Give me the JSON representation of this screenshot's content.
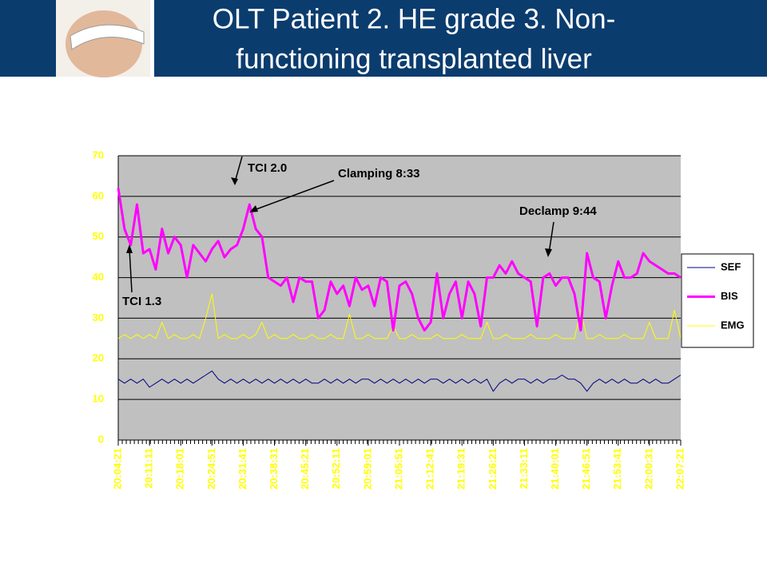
{
  "chart_data": {
    "type": "line",
    "title": [
      "OLT Patient 2. HE  grade 3. Non-",
      "functioning transplanted liver"
    ],
    "annotations": [
      "TCI 2.0",
      "Clamping 8:33",
      "Declamp 9:44",
      "TCI 1.3"
    ],
    "categories": [
      "20:04:21",
      null,
      null,
      null,
      null,
      "20:11:11",
      null,
      null,
      null,
      null,
      "20:18:01",
      null,
      null,
      null,
      null,
      "20:24:51",
      null,
      null,
      null,
      null,
      "20:31:41",
      null,
      null,
      null,
      null,
      "20:38:31",
      null,
      null,
      null,
      null,
      "20:45:21",
      null,
      null,
      null,
      null,
      "20:52:11",
      null,
      null,
      null,
      null,
      "20:59:01",
      null,
      null,
      null,
      null,
      "21:05:51",
      null,
      null,
      null,
      null,
      "21:12:41",
      null,
      null,
      null,
      null,
      "21:19:31",
      null,
      null,
      null,
      null,
      "21:26:21",
      null,
      null,
      null,
      null,
      "21:33:11",
      null,
      null,
      null,
      null,
      "21:40:01",
      null,
      null,
      null,
      null,
      "21:46:51",
      null,
      null,
      null,
      null,
      "21:53:41",
      null,
      null,
      null,
      null,
      "22:00:31",
      null,
      null,
      null,
      null,
      "22:07:21"
    ],
    "series": [
      {
        "name": "SEF",
        "color": "#000080",
        "width": 1,
        "values": [
          15,
          14,
          15,
          14,
          15,
          13,
          14,
          15,
          14,
          15,
          14,
          15,
          14,
          15,
          16,
          17,
          15,
          14,
          15,
          14,
          15,
          14,
          15,
          14,
          15,
          14,
          15,
          14,
          15,
          14,
          15,
          14,
          14,
          15,
          14,
          15,
          14,
          15,
          14,
          15,
          15,
          14,
          15,
          14,
          15,
          14,
          15,
          14,
          15,
          14,
          15,
          15,
          14,
          15,
          14,
          15,
          14,
          15,
          14,
          15,
          12,
          14,
          15,
          14,
          15,
          15,
          14,
          15,
          14,
          15,
          15,
          16,
          15,
          15,
          14,
          12,
          14,
          15,
          14,
          15,
          14,
          15,
          14,
          14,
          15,
          14,
          15,
          14,
          14,
          15,
          16
        ]
      },
      {
        "name": "BIS",
        "color": "#ff00ff",
        "width": 3,
        "values": [
          62,
          52,
          48,
          58,
          46,
          47,
          42,
          52,
          46,
          50,
          48,
          40,
          48,
          46,
          44,
          47,
          49,
          45,
          47,
          48,
          52,
          58,
          52,
          50,
          40,
          39,
          38,
          40,
          34,
          40,
          39,
          39,
          30,
          32,
          39,
          36,
          38,
          33,
          40,
          37,
          38,
          33,
          40,
          39,
          27,
          38,
          39,
          36,
          30,
          27,
          29,
          41,
          30,
          36,
          39,
          30,
          39,
          36,
          28,
          40,
          40,
          43,
          41,
          44,
          41,
          40,
          39,
          28,
          40,
          41,
          38,
          40,
          40,
          36,
          27,
          46,
          40,
          39,
          30,
          38,
          44,
          40,
          40,
          41,
          46,
          44,
          43,
          42,
          41,
          41,
          40
        ]
      },
      {
        "name": "EMG",
        "color": "#ffff00",
        "width": 1,
        "values": [
          25,
          26,
          25,
          26,
          25,
          26,
          25,
          29,
          25,
          26,
          25,
          25,
          26,
          25,
          30,
          36,
          25,
          26,
          25,
          25,
          26,
          25,
          26,
          29,
          25,
          26,
          25,
          25,
          26,
          25,
          25,
          26,
          25,
          25,
          26,
          25,
          25,
          31,
          25,
          25,
          26,
          25,
          25,
          25,
          28,
          25,
          25,
          26,
          25,
          25,
          25,
          26,
          25,
          25,
          25,
          26,
          25,
          25,
          25,
          29,
          25,
          25,
          26,
          25,
          25,
          25,
          26,
          25,
          25,
          25,
          26,
          25,
          25,
          25,
          32,
          25,
          25,
          26,
          25,
          25,
          25,
          26,
          25,
          25,
          25,
          29,
          25,
          25,
          25,
          32,
          25
        ]
      }
    ],
    "ylim": [
      0,
      70
    ],
    "yticks": [
      0,
      10,
      20,
      30,
      40,
      50,
      60,
      70
    ],
    "grid": true,
    "plot_background": "#c0c0c0",
    "legend": "right"
  }
}
